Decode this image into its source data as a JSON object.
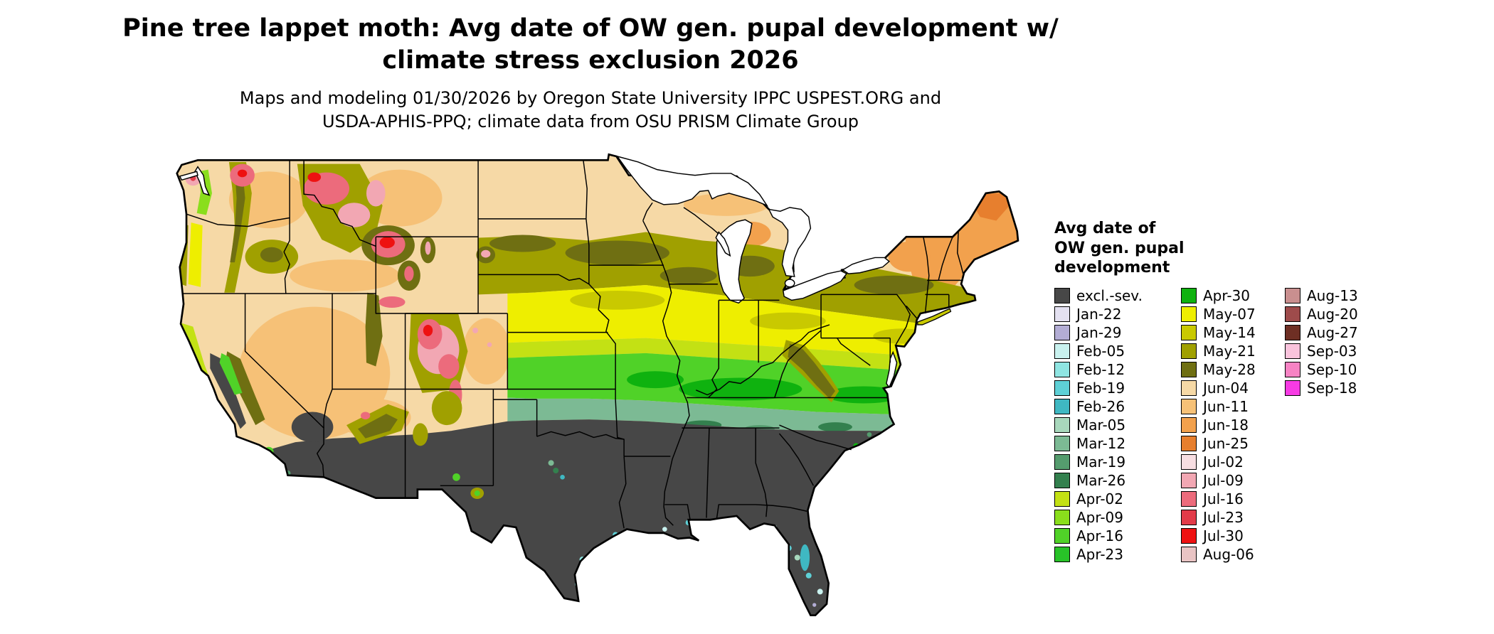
{
  "header": {
    "title_line1": "Pine tree lappet moth: Avg date of OW gen. pupal development w/",
    "title_line2": "climate stress exclusion 2026",
    "subtitle_line1": "Maps and modeling 01/30/2026 by Oregon State University IPPC USPEST.ORG and",
    "subtitle_line2": "USDA-APHIS-PPQ; climate data from OSU PRISM Climate Group"
  },
  "legend": {
    "title_lines": [
      "Avg date of",
      "OW gen. pupal",
      "development"
    ],
    "columns": [
      {
        "items": [
          {
            "label": "excl.-sev.",
            "color": "#474747"
          },
          {
            "label": "Jan-22",
            "color": "#e4e1f1"
          },
          {
            "label": "Jan-29",
            "color": "#b3add5"
          },
          {
            "label": "Feb-05",
            "color": "#c9f2ef"
          },
          {
            "label": "Feb-12",
            "color": "#8fe5e2"
          },
          {
            "label": "Feb-19",
            "color": "#5ed0d6"
          },
          {
            "label": "Feb-26",
            "color": "#3fb8c2"
          },
          {
            "label": "Mar-05",
            "color": "#a8d8bc"
          },
          {
            "label": "Mar-12",
            "color": "#7cba94"
          },
          {
            "label": "Mar-19",
            "color": "#559c6e"
          },
          {
            "label": "Mar-26",
            "color": "#33804e"
          },
          {
            "label": "Apr-02",
            "color": "#c3e114"
          },
          {
            "label": "Apr-09",
            "color": "#8ade1c"
          },
          {
            "label": "Apr-16",
            "color": "#50d228"
          },
          {
            "label": "Apr-23",
            "color": "#28c228"
          }
        ]
      },
      {
        "items": [
          {
            "label": "Apr-30",
            "color": "#0fb20f"
          },
          {
            "label": "May-07",
            "color": "#eeee00"
          },
          {
            "label": "May-14",
            "color": "#c9c900"
          },
          {
            "label": "May-21",
            "color": "#a0a000"
          },
          {
            "label": "May-28",
            "color": "#6f6f12"
          },
          {
            "label": "Jun-04",
            "color": "#f6d9a6"
          },
          {
            "label": "Jun-11",
            "color": "#f6c177"
          },
          {
            "label": "Jun-18",
            "color": "#f2a14d"
          },
          {
            "label": "Jun-25",
            "color": "#e77f2e"
          },
          {
            "label": "Jul-02",
            "color": "#f7dee2"
          },
          {
            "label": "Jul-09",
            "color": "#f2a7b3"
          },
          {
            "label": "Jul-16",
            "color": "#ec6b7c"
          },
          {
            "label": "Jul-23",
            "color": "#e23b49"
          },
          {
            "label": "Jul-30",
            "color": "#ee1111"
          },
          {
            "label": "Aug-06",
            "color": "#e9c4c4"
          }
        ]
      },
      {
        "items": [
          {
            "label": "Aug-13",
            "color": "#c98f8f"
          },
          {
            "label": "Aug-20",
            "color": "#9e4b4b"
          },
          {
            "label": "Aug-27",
            "color": "#6e2f24"
          },
          {
            "label": "Sep-03",
            "color": "#f9c3dc"
          },
          {
            "label": "Sep-10",
            "color": "#f783c4"
          },
          {
            "label": "Sep-18",
            "color": "#f73be4"
          }
        ]
      }
    ]
  },
  "map": {
    "description": "Contiguous United States raster map of average overwintering generation pupal development date",
    "water_color": "#ffffff",
    "boundary_color": "#000000"
  }
}
